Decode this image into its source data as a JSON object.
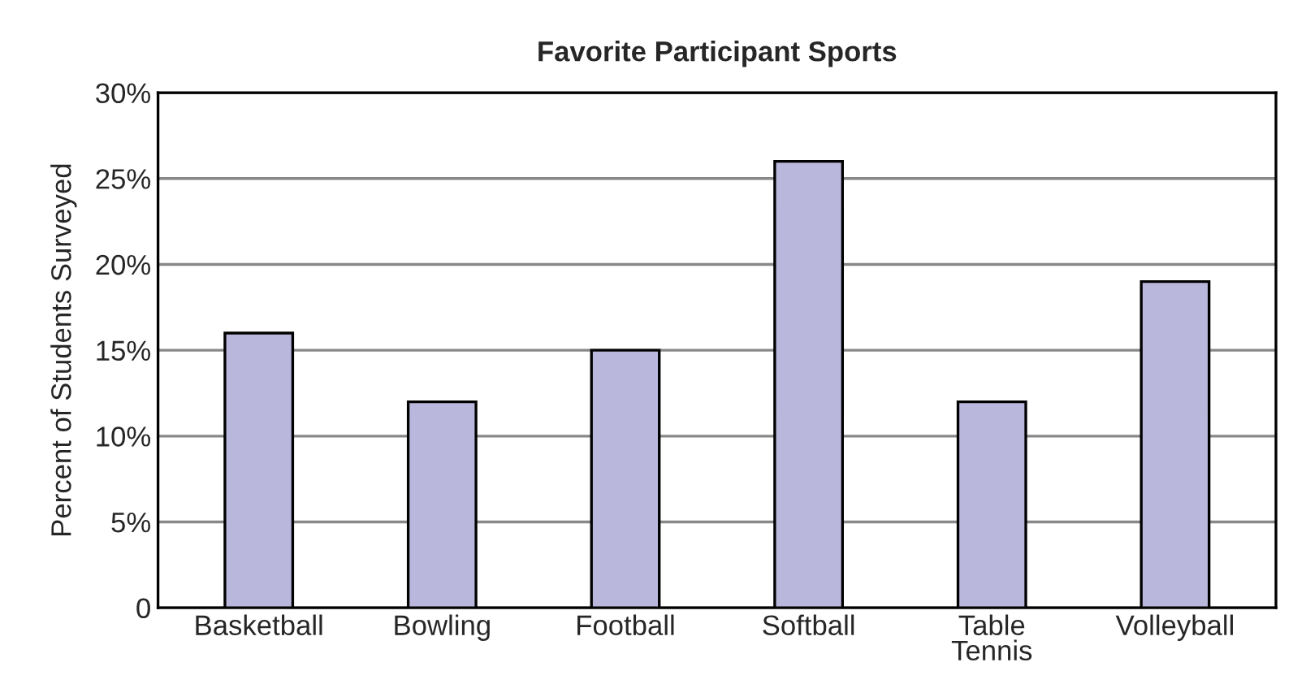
{
  "chart_data": {
    "type": "bar",
    "title": "Favorite Participant Sports",
    "ylabel": "Percent of Students Surveyed",
    "categories": [
      "Basketball",
      "Bowling",
      "Football",
      "Softball",
      "Table\nTennis",
      "Volleyball"
    ],
    "values": [
      16,
      12,
      15,
      26,
      12,
      19
    ],
    "color": "#b9b8dc",
    "ylim": [
      0,
      30
    ],
    "yticks": [
      0,
      {
        "value": 5,
        "label": "5%"
      },
      {
        "value": 10,
        "label": "10%"
      },
      {
        "value": 15,
        "label": "15%"
      },
      {
        "value": 20,
        "label": "20%"
      },
      {
        "value": 25,
        "label": "25%"
      },
      {
        "value": 30,
        "label": "30%"
      }
    ],
    "grid": "y",
    "legend": false
  }
}
